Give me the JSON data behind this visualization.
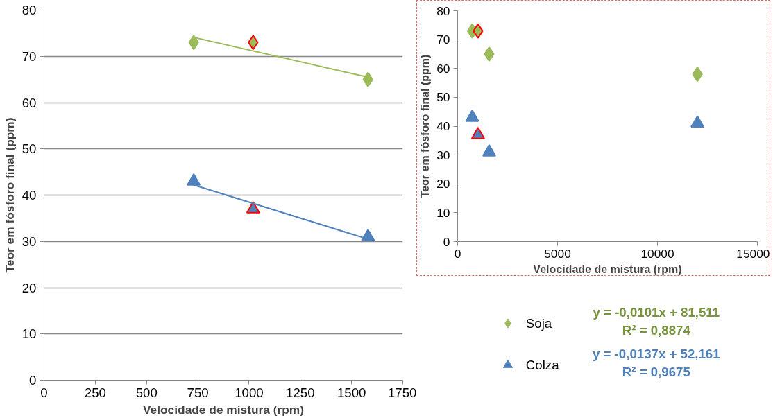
{
  "chart_data": [
    {
      "type": "scatter",
      "xlabel": "Velocidade de mistura (rpm)",
      "ylabel": "Teor em fósforo final (ppm)",
      "xlim": [
        0,
        1750
      ],
      "xticks": [
        0,
        250,
        500,
        750,
        1000,
        1250,
        1500,
        1750
      ],
      "ylim": [
        0,
        80
      ],
      "yticks": [
        0,
        10,
        20,
        30,
        40,
        50,
        60,
        70,
        80
      ],
      "grid": "y",
      "legend": "bottom right",
      "series": [
        {
          "name": "Soja",
          "color": "#9bbb59",
          "marker": "diamond",
          "x": [
            730,
            1580
          ],
          "values": [
            73,
            65
          ]
        },
        {
          "name": "Colza",
          "color": "#4f81bd",
          "marker": "triangle",
          "x": [
            730,
            1580
          ],
          "values": [
            43,
            31
          ]
        },
        {
          "color": "#9bbb59",
          "marker": "diamond",
          "x": [
            1020
          ],
          "values": [
            73
          ]
        },
        {
          "color": "#4f81bd",
          "marker": "triangle",
          "x": [
            1020
          ],
          "values": [
            37
          ]
        },
        {
          "type": "line",
          "color": "#9bbb59",
          "x": [
            730,
            1580
          ],
          "values": [
            74.1,
            65.5
          ]
        },
        {
          "type": "line",
          "color": "#4f81bd",
          "x": [
            730,
            1580
          ],
          "values": [
            42.2,
            30.5
          ]
        }
      ],
      "annotations": [
        "y = -0,0101x + 81,511\nR² = 0,8874",
        "y = -0,0137x + 52,161\nR² = 0,9675"
      ]
    },
    {
      "type": "scatter",
      "xlabel": "Velocidade de mistura (rpm)",
      "ylabel": "Teor em fósforo final (ppm)",
      "xlim": [
        0,
        15000
      ],
      "xticks": [
        0,
        5000,
        10000,
        15000
      ],
      "ylim": [
        0,
        80
      ],
      "yticks": [
        0,
        10,
        20,
        30,
        40,
        50,
        60,
        70,
        80
      ],
      "series": [
        {
          "color": "#9bbb59",
          "marker": "diamond",
          "x": [
            730,
            1580,
            12000
          ],
          "values": [
            73,
            65,
            58
          ]
        },
        {
          "color": "#4f81bd",
          "marker": "triangle",
          "x": [
            730,
            1580,
            12000
          ],
          "values": [
            43,
            31,
            41
          ]
        },
        {
          "color": "#9bbb59",
          "marker": "diamond",
          "x": [
            1020
          ],
          "values": [
            73
          ]
        },
        {
          "color": "#4f81bd",
          "marker": "triangle",
          "x": [
            1020
          ],
          "values": [
            37
          ]
        }
      ]
    }
  ]
}
